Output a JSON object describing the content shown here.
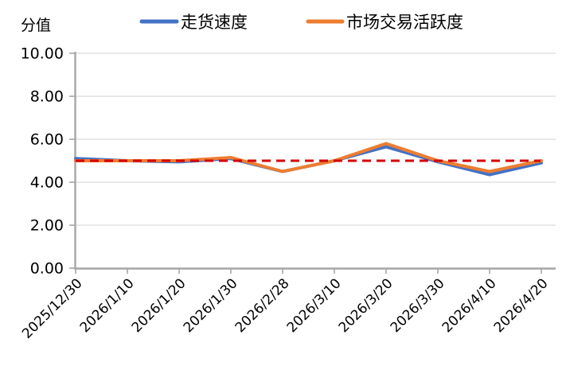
{
  "page": {
    "background": "#ffffff"
  },
  "chart_data": {
    "type": "line",
    "title": "",
    "ylabel": "分值",
    "xlabel": "",
    "ylim": [
      0,
      10
    ],
    "yticks": [
      0,
      2,
      4,
      6,
      8,
      10
    ],
    "ytick_labels": [
      "0.00",
      "2.00",
      "4.00",
      "6.00",
      "8.00",
      "10.00"
    ],
    "categories": [
      "2025/12/30",
      "2026/1/10",
      "2026/1/20",
      "2026/1/30",
      "2026/2/28",
      "2026/3/10",
      "2026/3/20",
      "2026/3/30",
      "2026/4/10",
      "2026/4/20"
    ],
    "series": [
      {
        "name": "走货速度",
        "color": "#4472C4",
        "values": [
          5.1,
          5.0,
          4.95,
          5.1,
          4.5,
          5.0,
          5.65,
          4.95,
          4.35,
          4.9
        ]
      },
      {
        "name": "市场交易活跃度",
        "color": "#ED7D31",
        "values": [
          5.0,
          5.0,
          5.0,
          5.15,
          4.5,
          5.0,
          5.8,
          5.0,
          4.5,
          5.0
        ]
      }
    ],
    "reference_line": {
      "value": 5.0,
      "color": "#D40000",
      "style": "dashed"
    },
    "legend_position": "top-center",
    "grid": true,
    "axis_color": "#A6A6A6",
    "gridline_color": "#D9D9D9",
    "text_color": "#000000"
  }
}
